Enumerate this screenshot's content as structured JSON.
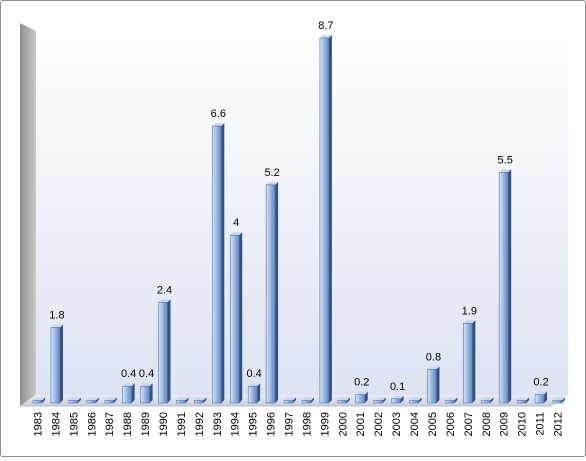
{
  "chart_data": {
    "type": "bar",
    "title": "",
    "xlabel": "",
    "ylabel": "",
    "categories": [
      "1983",
      "1984",
      "1985",
      "1986",
      "1987",
      "1988",
      "1989",
      "1990",
      "1991",
      "1992",
      "1993",
      "1994",
      "1995",
      "1996",
      "1997",
      "1998",
      "1999",
      "2000",
      "2001",
      "2002",
      "2003",
      "2004",
      "2005",
      "2006",
      "2007",
      "2008",
      "2009",
      "2010",
      "2011",
      "2012"
    ],
    "values": [
      0,
      1.8,
      0,
      0,
      0,
      0.4,
      0.4,
      2.4,
      0,
      0,
      6.6,
      4,
      0.4,
      5.2,
      0,
      0,
      8.7,
      0,
      0.2,
      0,
      0.1,
      0,
      0.8,
      0,
      1.9,
      0,
      5.5,
      0,
      0.2,
      0
    ],
    "data_labels": [
      "",
      "1.8",
      "",
      "",
      "",
      "0.4",
      "0.4",
      "2.4",
      "",
      "",
      "6.6",
      "4",
      "0.4",
      "5.2",
      "",
      "",
      "8.7",
      "",
      "0.2",
      "",
      "0.1",
      "",
      "0.8",
      "",
      "1.9",
      "",
      "5.5",
      "",
      "0.2",
      ""
    ],
    "ylim": [
      0,
      8.7
    ],
    "grid": false,
    "legend": "none",
    "style": "3d-column",
    "colors": {
      "bar_front_light": "#dce6f5",
      "bar_front_mid": "#9fbbe2",
      "bar_front_dark": "#5f86c2",
      "bar_side": "#33507e",
      "bar_top": "#c7d8f0",
      "wall_light": "#ffffff",
      "wall_dark": "#dde3f2",
      "floor": "#d9dee9",
      "side_wall": "#a6a6a6"
    }
  }
}
